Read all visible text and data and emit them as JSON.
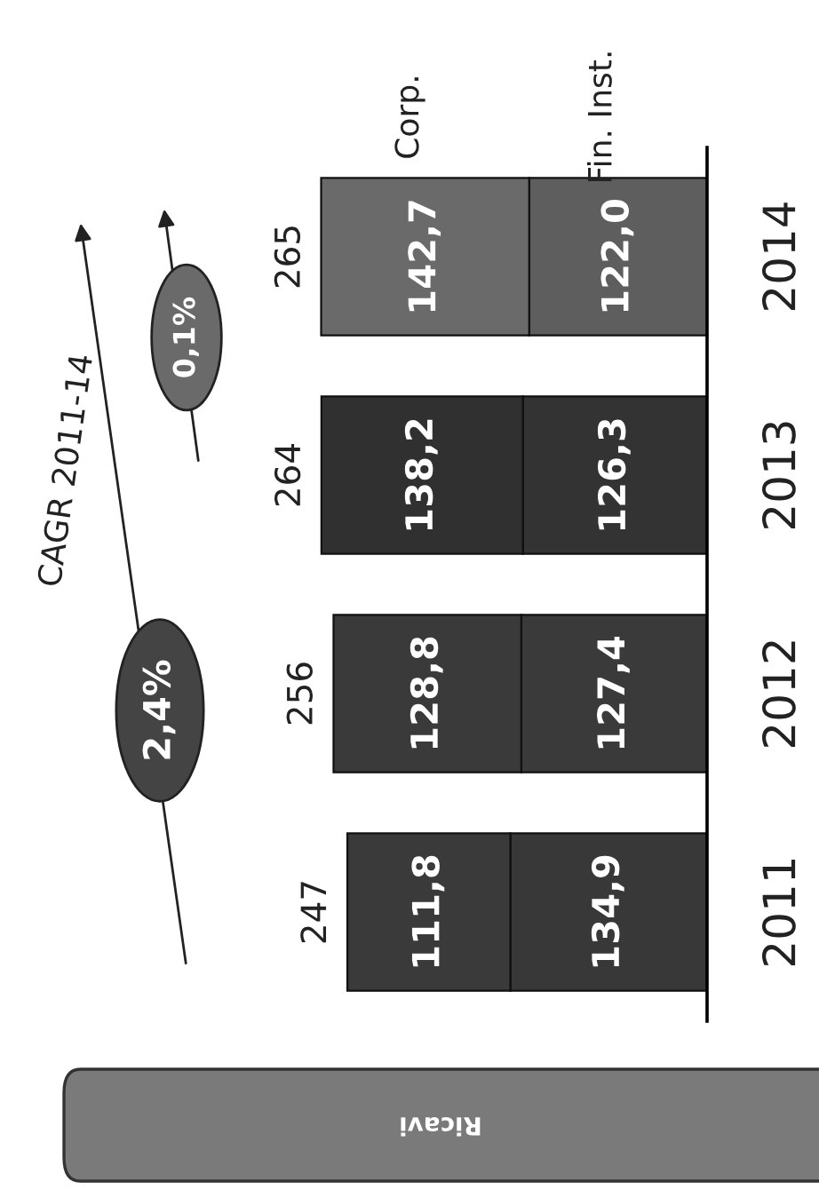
{
  "chart_data": {
    "type": "bar",
    "orientation": "horizontal",
    "stacked": true,
    "title": "Ricavi",
    "categories": [
      "2014",
      "2013",
      "2012",
      "2011"
    ],
    "series": [
      {
        "name": "Fin. Inst.",
        "colors": [
          "#5e5e5e",
          "#333333",
          "#3a3a3a",
          "#383838"
        ],
        "values": [
          122.0,
          126.3,
          127.4,
          134.9
        ],
        "value_labels": [
          "122,0",
          "126,3",
          "127,4",
          "134,9"
        ]
      },
      {
        "name": "Corp.",
        "colors": [
          "#6a6a6a",
          "#303030",
          "#3a3a3a",
          "#3a3a3a"
        ],
        "values": [
          142.7,
          138.2,
          128.8,
          111.8
        ],
        "value_labels": [
          "142,7",
          "138,2",
          "128,8",
          "111,8"
        ]
      }
    ],
    "totals": [
      "265",
      "264",
      "256",
      "247"
    ],
    "annotations": [
      "CAGR 2011-14",
      "2,4%",
      "0,1%"
    ],
    "grid": false,
    "legend": false
  }
}
